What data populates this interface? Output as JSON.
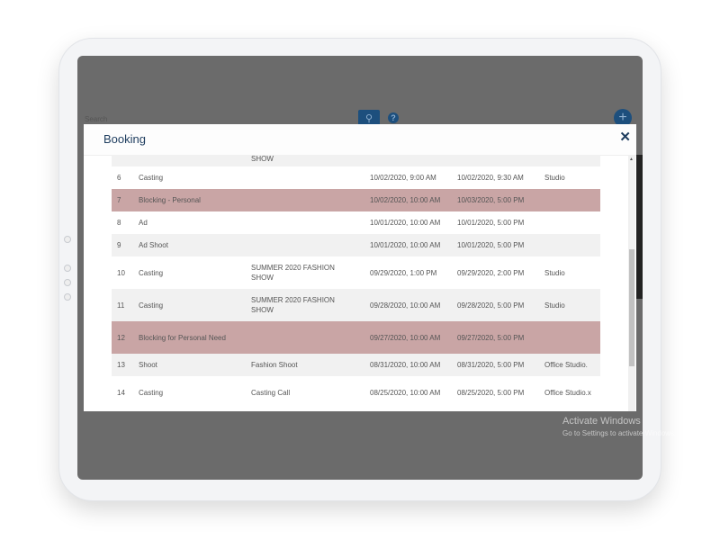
{
  "background": {
    "search_label": "Search",
    "search_icon": "search-icon",
    "help_icon": "question-icon",
    "add_icon": "plus-icon"
  },
  "modal": {
    "title": "Booking",
    "close_label": "✕"
  },
  "rows": [
    {
      "num": "",
      "type": "",
      "desc": "SHOW",
      "start": "",
      "end": "",
      "loc": "",
      "style": "gray"
    },
    {
      "num": "6",
      "type": "Casting",
      "desc": "",
      "start": "10/02/2020, 9:00 AM",
      "end": "10/02/2020, 9:30 AM",
      "loc": "Studio",
      "style": "white"
    },
    {
      "num": "7",
      "type": "Blocking - Personal",
      "desc": "",
      "start": "10/02/2020, 10:00 AM",
      "end": "10/03/2020, 5:00 PM",
      "loc": "",
      "style": "pink"
    },
    {
      "num": "8",
      "type": "Ad",
      "desc": "",
      "start": "10/01/2020, 10:00 AM",
      "end": "10/01/2020, 5:00 PM",
      "loc": "",
      "style": "white"
    },
    {
      "num": "9",
      "type": "Ad Shoot",
      "desc": "",
      "start": "10/01/2020, 10:00 AM",
      "end": "10/01/2020, 5:00 PM",
      "loc": "",
      "style": "gray"
    },
    {
      "num": "10",
      "type": "Casting",
      "desc": "SUMMER 2020 FASHION SHOW",
      "start": "09/29/2020, 1:00 PM",
      "end": "09/29/2020, 2:00 PM",
      "loc": "Studio",
      "style": "white"
    },
    {
      "num": "11",
      "type": "Casting",
      "desc": "SUMMER 2020 FASHION SHOW",
      "start": "09/28/2020, 10:00 AM",
      "end": "09/28/2020, 5:00 PM",
      "loc": "Studio",
      "style": "gray"
    },
    {
      "num": "12",
      "type": "Blocking for Personal Need",
      "desc": "",
      "start": "09/27/2020, 10:00 AM",
      "end": "09/27/2020, 5:00 PM",
      "loc": "",
      "style": "pink"
    },
    {
      "num": "13",
      "type": "Shoot",
      "desc": "Fashion Shoot",
      "start": "08/31/2020, 10:00 AM",
      "end": "08/31/2020, 5:00 PM",
      "loc": "Office Studio.",
      "style": "gray"
    },
    {
      "num": "14",
      "type": "Casting",
      "desc": "Casting Call",
      "start": "08/25/2020, 10:00 AM",
      "end": "08/25/2020, 5:00 PM",
      "loc": "Office Studio.x",
      "style": "white"
    }
  ],
  "watermark": {
    "line1": "Activate Windows",
    "line2": "Go to Settings to activate Windows."
  },
  "colors": {
    "highlight": "#c9a5a5",
    "title": "#1d3c5e",
    "accent": "#1d4f7d"
  }
}
